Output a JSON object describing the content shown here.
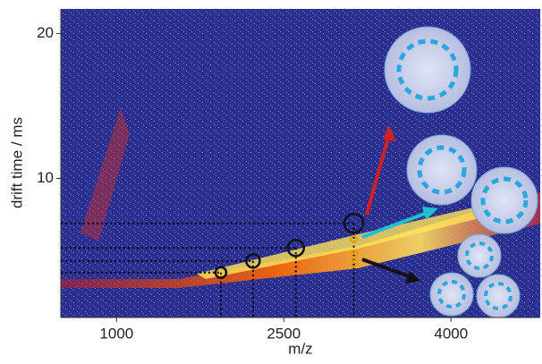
{
  "chart_data": {
    "type": "scatter",
    "xlabel": "m/z",
    "ylabel": "drift time / ms",
    "xlim": [
      500,
      4800
    ],
    "xticks": [
      1000,
      2500,
      4000
    ],
    "ylim": [
      0.4,
      21.7
    ],
    "yticks": [
      10,
      20
    ],
    "series": [
      {
        "color": "#111111",
        "x": [
          1936,
          2224,
          2608,
          3128
        ],
        "y": [
          3.5,
          4.3,
          5.2,
          6.9
        ]
      },
      {
        "color": "#e8a000",
        "x": [
          3128,
          3128,
          3128
        ],
        "y": [
          5.8,
          4.8,
          4.1
        ]
      }
    ]
  }
}
